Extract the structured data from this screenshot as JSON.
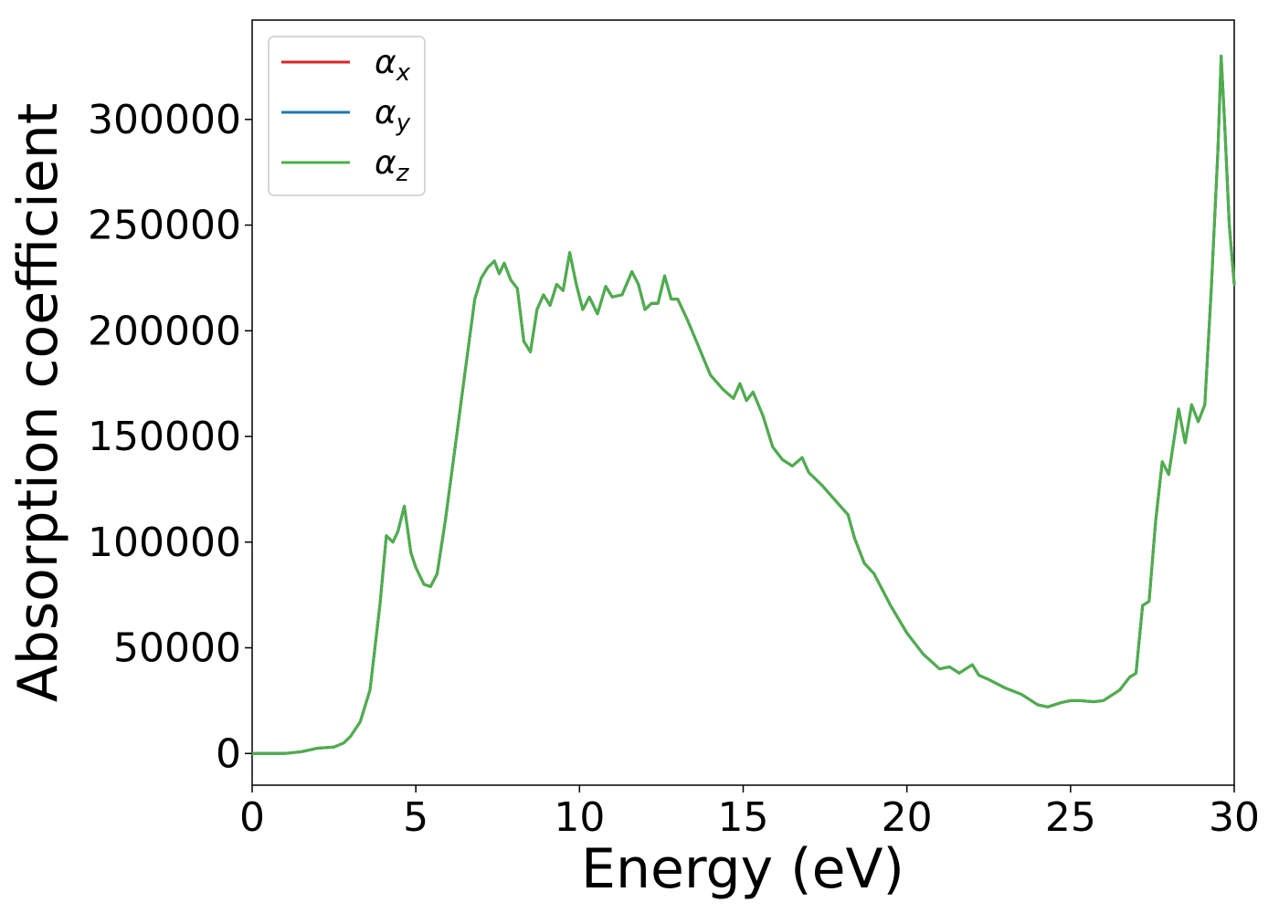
{
  "chart_data": {
    "type": "line",
    "title": "",
    "xlabel": "Energy (eV)",
    "ylabel": "Absorption coefficient",
    "xlim": [
      0,
      30
    ],
    "ylim": [
      -15000,
      347000
    ],
    "xticks": [
      0,
      5,
      10,
      15,
      20,
      25,
      30
    ],
    "yticks": [
      0,
      50000,
      100000,
      150000,
      200000,
      250000,
      300000
    ],
    "grid": false,
    "legend_position": "top-left",
    "legend": [
      {
        "base": "α",
        "sub": "x",
        "color": "#d62728"
      },
      {
        "base": "α",
        "sub": "y",
        "color": "#1f77b4"
      },
      {
        "base": "α",
        "sub": "z",
        "color": "#4daf4a"
      }
    ],
    "x": [
      0,
      0.5,
      1.0,
      1.5,
      2.0,
      2.5,
      2.8,
      3.0,
      3.3,
      3.6,
      3.9,
      4.1,
      4.3,
      4.45,
      4.65,
      4.85,
      5.0,
      5.25,
      5.45,
      5.65,
      5.9,
      6.2,
      6.5,
      6.8,
      7.0,
      7.2,
      7.4,
      7.55,
      7.7,
      7.9,
      8.1,
      8.3,
      8.5,
      8.7,
      8.9,
      9.1,
      9.3,
      9.5,
      9.7,
      9.9,
      10.1,
      10.3,
      10.55,
      10.8,
      11.0,
      11.3,
      11.6,
      11.8,
      12.0,
      12.2,
      12.4,
      12.6,
      12.8,
      13.0,
      13.3,
      13.6,
      14.0,
      14.4,
      14.7,
      14.9,
      15.1,
      15.3,
      15.6,
      15.9,
      16.2,
      16.5,
      16.8,
      17.0,
      17.4,
      17.8,
      18.2,
      18.4,
      18.7,
      19.0,
      19.5,
      20.0,
      20.5,
      21.0,
      21.3,
      21.6,
      22.0,
      22.2,
      22.5,
      23.0,
      23.5,
      23.8,
      24.0,
      24.3,
      24.7,
      25.0,
      25.3,
      25.7,
      26.0,
      26.3,
      26.5,
      26.8,
      27.0,
      27.2,
      27.4,
      27.6,
      27.8,
      28.0,
      28.3,
      28.5,
      28.7,
      28.9,
      29.1,
      29.3,
      29.5,
      29.6,
      29.7,
      29.85,
      30.0
    ],
    "series": [
      {
        "name": "αx",
        "color": "#d62728",
        "values": [
          0,
          0,
          0,
          800,
          2500,
          3000,
          5000,
          8000,
          15000,
          30000,
          70000,
          103000,
          100000,
          105000,
          117000,
          95000,
          88000,
          80000,
          79000,
          85000,
          110000,
          145000,
          180000,
          215000,
          225000,
          230000,
          233000,
          227000,
          232000,
          224000,
          220000,
          195000,
          190000,
          210000,
          217000,
          212000,
          222000,
          219000,
          237000,
          222000,
          210000,
          216000,
          208000,
          221000,
          216000,
          217000,
          228000,
          222000,
          210000,
          213000,
          213000,
          226000,
          215000,
          215000,
          205000,
          194000,
          179000,
          172000,
          168000,
          175000,
          167000,
          171000,
          160000,
          145000,
          139000,
          136000,
          140000,
          133000,
          127000,
          120000,
          113000,
          102000,
          90000,
          85000,
          70000,
          57000,
          47000,
          40000,
          41000,
          38000,
          42000,
          37000,
          35000,
          31000,
          28000,
          25000,
          23000,
          22000,
          24000,
          25000,
          25000,
          24500,
          25000,
          28000,
          30000,
          36000,
          38000,
          70000,
          72000,
          110000,
          138000,
          132000,
          163000,
          147000,
          165000,
          157000,
          165000,
          220000,
          285000,
          330000,
          300000,
          250000,
          222000
        ]
      },
      {
        "name": "αy",
        "color": "#1f77b4",
        "values": [
          0,
          0,
          0,
          800,
          2500,
          3000,
          5000,
          8000,
          15000,
          30000,
          70000,
          103000,
          100000,
          105000,
          117000,
          95000,
          88000,
          80000,
          79000,
          85000,
          110000,
          145000,
          180000,
          215000,
          225000,
          230000,
          233000,
          227000,
          232000,
          224000,
          220000,
          195000,
          190000,
          210000,
          217000,
          212000,
          222000,
          219000,
          237000,
          222000,
          210000,
          216000,
          208000,
          221000,
          216000,
          217000,
          228000,
          222000,
          210000,
          213000,
          213000,
          226000,
          215000,
          215000,
          205000,
          194000,
          179000,
          172000,
          168000,
          175000,
          167000,
          171000,
          160000,
          145000,
          139000,
          136000,
          140000,
          133000,
          127000,
          120000,
          113000,
          102000,
          90000,
          85000,
          70000,
          57000,
          47000,
          40000,
          41000,
          38000,
          42000,
          37000,
          35000,
          31000,
          28000,
          25000,
          23000,
          22000,
          24000,
          25000,
          25000,
          24500,
          25000,
          28000,
          30000,
          36000,
          38000,
          70000,
          72000,
          110000,
          138000,
          132000,
          163000,
          147000,
          165000,
          157000,
          165000,
          220000,
          285000,
          330000,
          300000,
          250000,
          222000
        ]
      },
      {
        "name": "αz",
        "color": "#4daf4a",
        "values": [
          0,
          0,
          0,
          800,
          2500,
          3000,
          5000,
          8000,
          15000,
          30000,
          70000,
          103000,
          100000,
          105000,
          117000,
          95000,
          88000,
          80000,
          79000,
          85000,
          110000,
          145000,
          180000,
          215000,
          225000,
          230000,
          233000,
          227000,
          232000,
          224000,
          220000,
          195000,
          190000,
          210000,
          217000,
          212000,
          222000,
          219000,
          237000,
          222000,
          210000,
          216000,
          208000,
          221000,
          216000,
          217000,
          228000,
          222000,
          210000,
          213000,
          213000,
          226000,
          215000,
          215000,
          205000,
          194000,
          179000,
          172000,
          168000,
          175000,
          167000,
          171000,
          160000,
          145000,
          139000,
          136000,
          140000,
          133000,
          127000,
          120000,
          113000,
          102000,
          90000,
          85000,
          70000,
          57000,
          47000,
          40000,
          41000,
          38000,
          42000,
          37000,
          35000,
          31000,
          28000,
          25000,
          23000,
          22000,
          24000,
          25000,
          25000,
          24500,
          25000,
          28000,
          30000,
          36000,
          38000,
          70000,
          72000,
          110000,
          138000,
          132000,
          163000,
          147000,
          165000,
          157000,
          165000,
          220000,
          285000,
          330000,
          300000,
          250000,
          222000
        ]
      }
    ]
  }
}
